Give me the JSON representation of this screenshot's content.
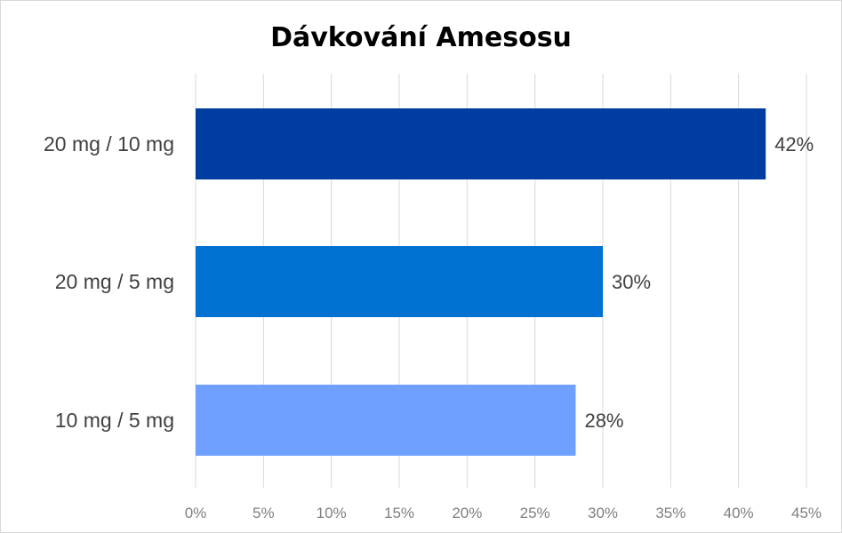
{
  "chart_data": {
    "type": "bar",
    "orientation": "horizontal",
    "title": "Dávkování Amesosu",
    "categories": [
      "20 mg / 10 mg",
      "20 mg / 5 mg",
      "10 mg / 5 mg"
    ],
    "values": [
      42,
      30,
      28
    ],
    "value_labels": [
      "42%",
      "30%",
      "28%"
    ],
    "colors": [
      "#003DA0",
      "#0070D2",
      "#70A0FF"
    ],
    "xlim": [
      0,
      45
    ],
    "xticks": [
      0,
      5,
      10,
      15,
      20,
      25,
      30,
      35,
      40,
      45
    ],
    "xtick_labels": [
      "0%",
      "5%",
      "10%",
      "15%",
      "20%",
      "25%",
      "30%",
      "35%",
      "40%",
      "45%"
    ],
    "grid": "vertical",
    "gridline_color": "#d9d9d9",
    "legend": "none"
  }
}
